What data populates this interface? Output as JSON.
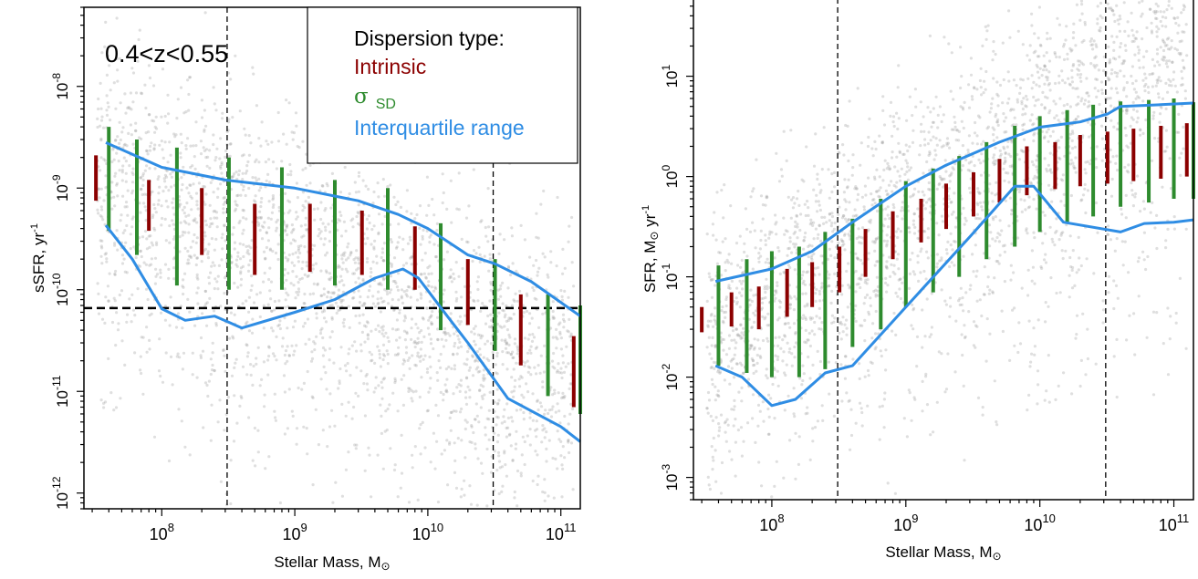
{
  "chart_data": [
    {
      "type": "scatter",
      "panel": "left",
      "annotation": "0.4<z<0.55",
      "xlabel": "Stellar Mass, M",
      "xlabel_sub": "⊙",
      "ylabel": "sSFR, yr",
      "ylabel_sup": "-1",
      "x_scale": "log",
      "y_scale": "log",
      "xlim": [
        26000000.0,
        140000000000.0
      ],
      "ylim": [
        7e-13,
        6e-08
      ],
      "x_ticks": [
        {
          "base": "10",
          "exp": "8",
          "value": 100000000.0
        },
        {
          "base": "10",
          "exp": "9",
          "value": 1000000000.0
        },
        {
          "base": "10",
          "exp": "10",
          "value": 10000000000.0
        },
        {
          "base": "10",
          "exp": "11",
          "value": 100000000000.0
        }
      ],
      "y_ticks": [
        {
          "base": "10",
          "exp": "-12",
          "value": 1e-12
        },
        {
          "base": "10",
          "exp": "-11",
          "value": 1e-11
        },
        {
          "base": "10",
          "exp": "-10",
          "value": 1e-10
        },
        {
          "base": "10",
          "exp": "-9",
          "value": 1e-09
        },
        {
          "base": "10",
          "exp": "-8",
          "value": 1e-08
        }
      ],
      "vlines": [
        310000000.0,
        31000000000.0
      ],
      "hline": 6.6e-11,
      "legend": {
        "title": "Dispersion type:",
        "placement": "top-right",
        "entries": [
          {
            "label": "Intrinsic",
            "color": "#8b0000"
          },
          {
            "label": "σ",
            "sub": "SD",
            "color": "#2e8b2e"
          },
          {
            "label": "Interquartile range",
            "color": "#2f8de4"
          }
        ]
      },
      "cloud": {
        "type": "decreasing",
        "center": [
          9.0,
          -9.6
        ],
        "spread": 0.55
      },
      "series": [
        {
          "name": "Intrinsic",
          "color": "#8b0000",
          "x": [
            32000000.0,
            80000000.0,
            200000000.0,
            500000000.0,
            1300000000.0,
            3200000000.0,
            8000000000.0,
            20000000000.0,
            50000000000.0,
            125000000000.0
          ],
          "lo": [
            7.5e-10,
            3.8e-10,
            2.2e-10,
            1.4e-10,
            1.5e-10,
            1.4e-10,
            1e-10,
            4.5e-11,
            1.8e-11,
            7e-12
          ],
          "hi": [
            2.1e-09,
            1.2e-09,
            1e-09,
            7e-10,
            7e-10,
            6e-10,
            4.2e-10,
            2e-10,
            9e-11,
            3.5e-11
          ]
        },
        {
          "name": "σ SD",
          "color": "#2e8b2e",
          "x": [
            40000000.0,
            65000000.0,
            130000000.0,
            320000000.0,
            800000000.0,
            2000000000.0,
            5000000000.0,
            12500000000.0,
            32000000000.0,
            80000000000.0,
            140000000000.0
          ],
          "lo": [
            3.8e-10,
            2.2e-10,
            1.1e-10,
            1e-10,
            1e-10,
            1.1e-10,
            1e-10,
            4e-11,
            2.5e-11,
            9e-12,
            6e-12
          ],
          "hi": [
            4e-09,
            3e-09,
            2.5e-09,
            2e-09,
            1.6e-09,
            1.2e-09,
            1e-09,
            4.5e-10,
            2e-10,
            9e-11,
            7e-11
          ]
        },
        {
          "name": "Interquartile range upper",
          "color": "#2f8de4",
          "x": [
            38000000.0,
            100000000.0,
            300000000.0,
            1000000000.0,
            3000000000.0,
            6000000000.0,
            10000000000.0,
            20000000000.0,
            32000000000.0,
            60000000000.0,
            140000000000.0
          ],
          "y": [
            2.8e-09,
            1.6e-09,
            1.2e-09,
            1e-09,
            7.5e-10,
            5.5e-10,
            4e-10,
            2.2e-10,
            1.8e-10,
            1.2e-10,
            5.5e-11
          ]
        },
        {
          "name": "Interquartile range lower",
          "color": "#2f8de4",
          "x": [
            38000000.0,
            60000000.0,
            100000000.0,
            150000000.0,
            250000000.0,
            400000000.0,
            1000000000.0,
            2000000000.0,
            4000000000.0,
            6500000000.0,
            8500000000.0,
            14000000000.0,
            20000000000.0,
            40000000000.0,
            100000000000.0,
            140000000000.0
          ],
          "y": [
            4.3e-10,
            2e-10,
            6.5e-11,
            5e-11,
            5.5e-11,
            4.2e-11,
            6e-11,
            8e-11,
            1.3e-10,
            1.6e-10,
            1.3e-10,
            5.5e-11,
            3e-11,
            8.5e-12,
            4.5e-12,
            3.2e-12
          ]
        }
      ]
    },
    {
      "type": "scatter",
      "panel": "right",
      "xlabel": "Stellar Mass, M",
      "xlabel_sub": "⊙",
      "ylabel": "SFR, M",
      "ylabel_sub": "⊙",
      "ylabel_tail": " yr",
      "ylabel_sup": "-1",
      "x_scale": "log",
      "y_scale": "log",
      "xlim": [
        26000000.0,
        140000000000.0
      ],
      "ylim": [
        0.0006,
        60
      ],
      "x_ticks": [
        {
          "base": "10",
          "exp": "8",
          "value": 100000000.0
        },
        {
          "base": "10",
          "exp": "9",
          "value": 1000000000.0
        },
        {
          "base": "10",
          "exp": "10",
          "value": 10000000000.0
        },
        {
          "base": "10",
          "exp": "11",
          "value": 100000000000.0
        }
      ],
      "y_ticks": [
        {
          "base": "10",
          "exp": "-3",
          "value": 0.001
        },
        {
          "base": "10",
          "exp": "-2",
          "value": 0.01
        },
        {
          "base": "10",
          "exp": "-1",
          "value": 0.1
        },
        {
          "base": "10",
          "exp": "0",
          "value": 1
        },
        {
          "base": "10",
          "exp": "1",
          "value": 10
        }
      ],
      "vlines": [
        310000000.0,
        31000000000.0
      ],
      "cloud": {
        "type": "increasing",
        "center": [
          9.0,
          -0.6
        ],
        "spread": 0.55
      },
      "series": [
        {
          "name": "Intrinsic",
          "color": "#8b0000",
          "x": [
            30000000.0,
            50000000.0,
            80000000.0,
            130000000.0,
            200000000.0,
            320000000.0,
            500000000.0,
            800000000.0,
            1300000000.0,
            2000000000.0,
            3200000000.0,
            5000000000.0,
            8000000000.0,
            13000000000.0,
            20000000000.0,
            32000000000.0,
            50000000000.0,
            80000000000.0,
            125000000000.0
          ],
          "lo": [
            0.028,
            0.032,
            0.03,
            0.04,
            0.05,
            0.07,
            0.1,
            0.15,
            0.22,
            0.3,
            0.4,
            0.55,
            0.65,
            0.75,
            0.8,
            0.85,
            0.9,
            0.95,
            1.0
          ],
          "hi": [
            0.05,
            0.07,
            0.08,
            0.12,
            0.14,
            0.2,
            0.3,
            0.45,
            0.6,
            0.85,
            1.1,
            1.5,
            2.0,
            2.2,
            2.6,
            2.8,
            3.0,
            3.2,
            3.4
          ]
        },
        {
          "name": "σ SD",
          "color": "#2e8b2e",
          "x": [
            40000000.0,
            65000000.0,
            100000000.0,
            160000000.0,
            250000000.0,
            400000000.0,
            650000000.0,
            1000000000.0,
            1600000000.0,
            2500000000.0,
            4000000000.0,
            6500000000.0,
            10000000000.0,
            16000000000.0,
            25000000000.0,
            40000000000.0,
            65000000000.0,
            100000000000.0,
            140000000000.0
          ],
          "lo": [
            0.013,
            0.011,
            0.01,
            0.01,
            0.012,
            0.02,
            0.03,
            0.05,
            0.07,
            0.1,
            0.15,
            0.2,
            0.28,
            0.35,
            0.4,
            0.5,
            0.55,
            0.6,
            0.6
          ],
          "hi": [
            0.13,
            0.15,
            0.18,
            0.2,
            0.28,
            0.38,
            0.6,
            0.9,
            1.2,
            1.6,
            2.2,
            3.2,
            4.0,
            4.6,
            5.2,
            5.6,
            5.8,
            6.0,
            5.5
          ]
        },
        {
          "name": "Interquartile range upper",
          "color": "#2f8de4",
          "x": [
            38000000.0,
            100000000.0,
            200000000.0,
            400000000.0,
            1000000000.0,
            2000000000.0,
            5000000000.0,
            10000000000.0,
            20000000000.0,
            32000000000.0,
            40000000000.0,
            80000000000.0,
            140000000000.0
          ],
          "y": [
            0.09,
            0.12,
            0.18,
            0.35,
            0.8,
            1.3,
            2.2,
            3.1,
            3.5,
            4.2,
            5.0,
            5.2,
            5.4
          ]
        },
        {
          "name": "Interquartile range lower",
          "color": "#2f8de4",
          "x": [
            38000000.0,
            60000000.0,
            100000000.0,
            150000000.0,
            250000000.0,
            400000000.0,
            1000000000.0,
            3000000000.0,
            6500000000.0,
            9000000000.0,
            15000000000.0,
            40000000000.0,
            60000000000.0,
            100000000000.0,
            140000000000.0
          ],
          "y": [
            0.013,
            0.01,
            0.0052,
            0.006,
            0.011,
            0.013,
            0.05,
            0.25,
            0.8,
            0.8,
            0.35,
            0.28,
            0.34,
            0.35,
            0.37
          ]
        }
      ]
    }
  ]
}
